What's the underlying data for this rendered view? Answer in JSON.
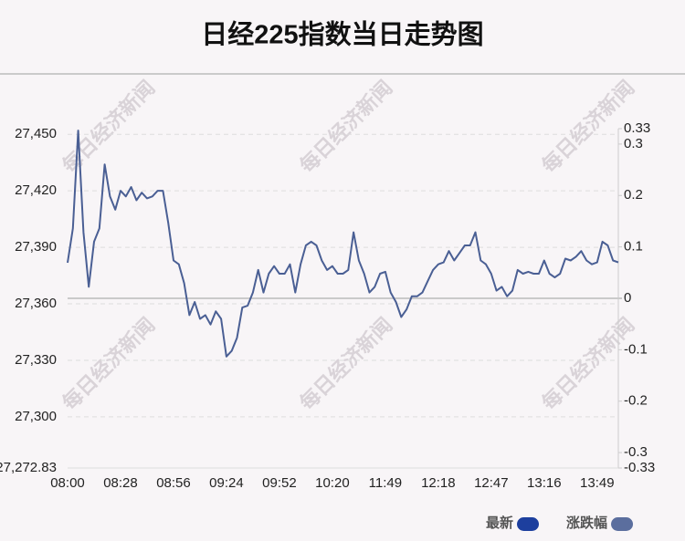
{
  "chart_data": {
    "type": "line",
    "title": "日经225指数当日走势图",
    "watermark": "每日经济新闻",
    "categories": [
      "08:00",
      null,
      null,
      null,
      null,
      null,
      null,
      null,
      null,
      null,
      "08:28",
      null,
      null,
      null,
      null,
      null,
      null,
      null,
      null,
      null,
      "08:56",
      null,
      null,
      null,
      null,
      null,
      null,
      null,
      null,
      null,
      "09:24",
      null,
      null,
      null,
      null,
      null,
      null,
      null,
      null,
      null,
      "09:52",
      null,
      null,
      null,
      null,
      null,
      null,
      null,
      null,
      null,
      "10:20",
      null,
      null,
      null,
      null,
      null,
      null,
      null,
      null,
      null,
      "11:49",
      null,
      null,
      null,
      null,
      null,
      null,
      null,
      null,
      null,
      "12:18",
      null,
      null,
      null,
      null,
      null,
      null,
      null,
      null,
      null,
      "12:47",
      null,
      null,
      null,
      null,
      null,
      null,
      null,
      null,
      null,
      "13:16",
      null,
      null,
      null,
      null,
      null,
      null,
      null,
      null,
      null,
      "13:49",
      null,
      null,
      null,
      null
    ],
    "series": [
      {
        "name": "最新",
        "color": "#4a5f94",
        "values": [
          27381.8,
          27400,
          27452,
          27398,
          27369,
          27393,
          27400,
          27434,
          27417,
          27410,
          27420,
          27417,
          27422,
          27415,
          27419,
          27416,
          27417,
          27420,
          27420,
          27403,
          27383,
          27381,
          27371,
          27354,
          27361,
          27352,
          27354,
          27349,
          27356,
          27352,
          27332,
          27335,
          27342,
          27358,
          27359,
          27366,
          27378,
          27366,
          27376,
          27380,
          27376,
          27376,
          27381,
          27366,
          27381,
          27391,
          27393,
          27391,
          27383,
          27378,
          27380,
          27376,
          27376,
          27378,
          27398,
          27383,
          27376,
          27366,
          27369,
          27376,
          27377,
          27366,
          27361,
          27353,
          27357,
          27364,
          27364,
          27366,
          27372,
          27378,
          27381,
          27382,
          27388,
          27383,
          27387,
          27391,
          27391,
          27398,
          27383,
          27381,
          27376,
          27367,
          27369,
          27364,
          27367,
          27378,
          27376,
          27377,
          27376,
          27376,
          27383,
          27376,
          27374,
          27376,
          27384,
          27383,
          27385,
          27388,
          27383,
          27381,
          27382,
          27393,
          27391,
          27383,
          27382
        ]
      }
    ],
    "legend": [
      {
        "name": "最新",
        "color": "#1d3f9e"
      },
      {
        "name": "涨跌幅",
        "color": "#5b6e9e"
      }
    ],
    "ylim": [
      27272.83,
      27453
    ],
    "yticks": [
      {
        "value": 27272.83,
        "label": "27,272.83"
      },
      {
        "value": 27300,
        "label": "27,300"
      },
      {
        "value": 27330,
        "label": "27,330"
      },
      {
        "value": 27360,
        "label": "27,360"
      },
      {
        "value": 27390,
        "label": "27,390"
      },
      {
        "value": 27420,
        "label": "27,420"
      },
      {
        "value": 27450,
        "label": "27,450"
      }
    ],
    "y2lim": [
      -0.33,
      0.33
    ],
    "y2ticks": [
      -0.33,
      -0.3,
      -0.2,
      -0.1,
      0,
      0.1,
      0.2,
      0.3,
      0.33
    ],
    "grid": true
  }
}
